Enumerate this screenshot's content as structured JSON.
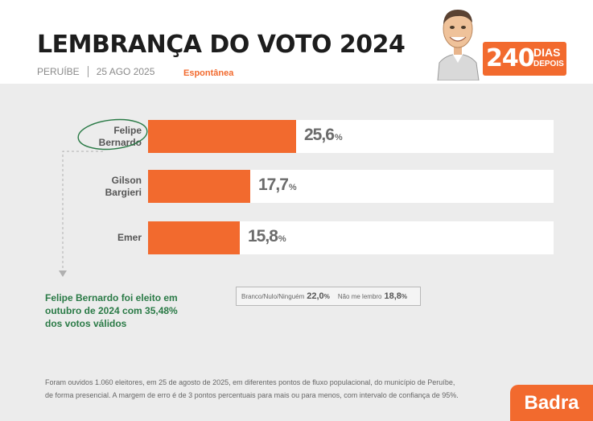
{
  "header": {
    "title": "LEMBRANÇA DO VOTO 2024",
    "city": "PERUÍBE",
    "date": "25 AGO 2025",
    "type": "Espontânea",
    "badge_number": "240",
    "badge_line1": "DIAS",
    "badge_line2": "DEPOIS"
  },
  "chart_data": {
    "type": "bar",
    "orientation": "horizontal",
    "categories": [
      "Felipe Bernardo",
      "Gilson Bargieri",
      "Emer"
    ],
    "category_lines": [
      [
        "Felipe",
        "Bernardo"
      ],
      [
        "Gilson",
        "Bargieri"
      ],
      [
        "Emer"
      ]
    ],
    "values": [
      25.6,
      17.7,
      15.8
    ],
    "value_labels": [
      "25,6",
      "17,7",
      "15,8"
    ],
    "unit": "%",
    "xlim": [
      0,
      70
    ],
    "highlight": "Felipe Bernardo",
    "bar_color": "#f26a2e",
    "grid": false,
    "legend": "none"
  },
  "others": [
    {
      "label": "Branco/Nulo/Ninguém",
      "value": "22,0",
      "unit": "%"
    },
    {
      "label": "Não me lembro",
      "value": "18,8",
      "unit": "%"
    }
  ],
  "note": "Felipe Bernardo foi eleito em outubro de 2024 com 35,48% dos votos válidos",
  "footer": {
    "line1": "Foram ouvidos 1.060 eleitores, em 25 de agosto de 2025, em diferentes pontos de fluxo populacional, do município de Peruíbe,",
    "line2": "de forma presencial. A margem de erro é de 3 pontos percentuais para mais ou para menos, com intervalo de confiança de 95%."
  },
  "logo": "Badra",
  "colors": {
    "accent": "#f26a2e",
    "note_green": "#2a7a46"
  }
}
